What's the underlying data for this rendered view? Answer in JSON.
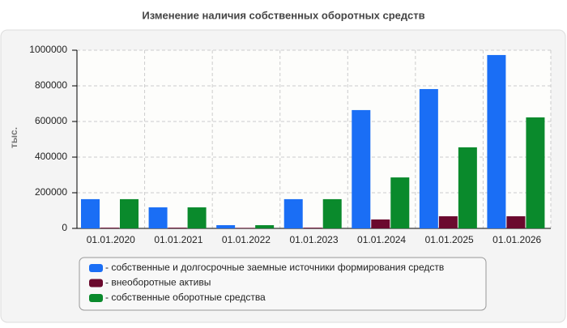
{
  "chart_data": {
    "type": "bar",
    "title": "Изменение наличия собственных оборотных средств",
    "y_label": "тыс.",
    "categories": [
      "01.01.2020",
      "01.01.2021",
      "01.01.2022",
      "01.01.2023",
      "01.01.2024",
      "01.01.2025",
      "01.01.2026"
    ],
    "series": [
      {
        "name": "- собственные и долгосрочные заемные источники формирования средств",
        "color": "#1a6ef5",
        "values": [
          164000,
          118000,
          18000,
          164000,
          664000,
          782000,
          973000
        ]
      },
      {
        "name": "- внеоборотные активы",
        "color": "#6b0a2e",
        "values": [
          4000,
          4000,
          3000,
          4000,
          50000,
          68000,
          68000
        ]
      },
      {
        "name": "- собственные оборотные средства",
        "color": "#0a8a2c",
        "values": [
          164000,
          118000,
          18000,
          164000,
          286000,
          455000,
          623000
        ]
      }
    ],
    "ylim": [
      0,
      1000000
    ],
    "yticks": [
      0,
      200000,
      400000,
      600000,
      800000,
      1000000
    ],
    "grid": true
  }
}
